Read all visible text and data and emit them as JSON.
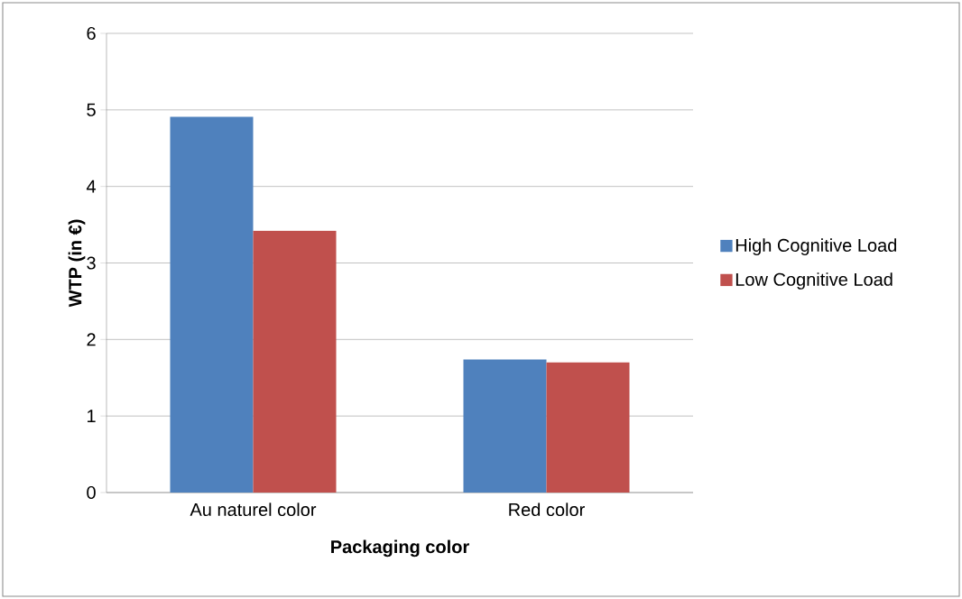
{
  "chart_data": {
    "type": "bar",
    "xlabel": "Packaging color",
    "ylabel": "WTP (in €)",
    "categories": [
      "Au naturel color",
      "Red color"
    ],
    "series": [
      {
        "name": "High Cognitive Load",
        "color": "#4f81bd",
        "values": [
          4.91,
          1.74
        ]
      },
      {
        "name": "Low Cognitive Load",
        "color": "#c0504d",
        "values": [
          3.42,
          1.7
        ]
      }
    ],
    "ylim": [
      0,
      6
    ],
    "yticks": [
      0,
      1,
      2,
      3,
      4,
      5,
      6
    ],
    "grid": "y",
    "legend": "right"
  }
}
